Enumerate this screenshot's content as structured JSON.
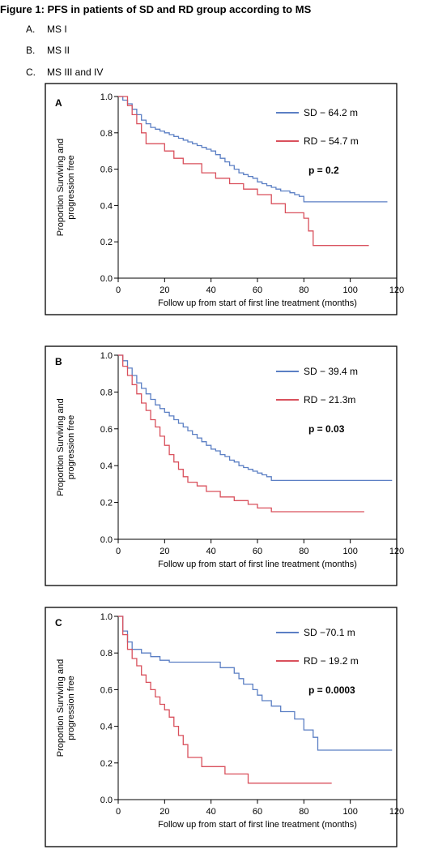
{
  "figure": {
    "title": "Figure 1: PFS in patients of SD and RD group according to MS",
    "captions": [
      {
        "letter": "A.",
        "text": "MS I"
      },
      {
        "letter": "B.",
        "text": "MS II"
      },
      {
        "letter": "C.",
        "text": "MS III and IV"
      }
    ]
  },
  "colors": {
    "SD": "#5b7fc4",
    "RD": "#d9505c"
  },
  "chart_data": [
    {
      "type": "line",
      "step": true,
      "panel_label": "A",
      "xlabel": "Follow up from start of first line treatment (months)",
      "ylabel": "Proportion Surviving and progression free",
      "xlim": [
        0,
        120
      ],
      "ylim": [
        0,
        1.0
      ],
      "xticks": [
        0,
        20,
        40,
        60,
        80,
        100,
        120
      ],
      "yticks": [
        0.0,
        0.2,
        0.4,
        0.6,
        0.8,
        1.0
      ],
      "xtick_labels": [
        "0",
        "20",
        "40",
        "60",
        "80",
        "100",
        "120"
      ],
      "ytick_labels": [
        "0.0",
        "0.2",
        "0.4",
        "0.6",
        "0.8",
        "1.0"
      ],
      "legend_position": "top-right",
      "p_value": "p = 0.2",
      "series": [
        {
          "name": "SD − 64.2 m",
          "color_key": "SD",
          "x": [
            0,
            2,
            4,
            6,
            8,
            10,
            12,
            14,
            16,
            18,
            20,
            22,
            24,
            26,
            28,
            30,
            32,
            34,
            36,
            38,
            40,
            42,
            44,
            46,
            48,
            50,
            52,
            54,
            56,
            58,
            60,
            62,
            64,
            66,
            68,
            70,
            72,
            74,
            76,
            78,
            80,
            116
          ],
          "y": [
            1.0,
            0.98,
            0.96,
            0.93,
            0.9,
            0.87,
            0.85,
            0.83,
            0.82,
            0.81,
            0.8,
            0.79,
            0.78,
            0.77,
            0.76,
            0.75,
            0.74,
            0.73,
            0.72,
            0.71,
            0.7,
            0.68,
            0.66,
            0.64,
            0.62,
            0.6,
            0.58,
            0.57,
            0.56,
            0.55,
            0.53,
            0.52,
            0.51,
            0.5,
            0.49,
            0.48,
            0.48,
            0.47,
            0.46,
            0.45,
            0.42,
            0.42
          ]
        },
        {
          "name": "RD − 54.7 m",
          "color_key": "RD",
          "x": [
            0,
            4,
            6,
            8,
            10,
            12,
            20,
            24,
            28,
            36,
            42,
            48,
            54,
            60,
            66,
            72,
            80,
            82,
            84,
            108
          ],
          "y": [
            1.0,
            0.95,
            0.9,
            0.85,
            0.8,
            0.74,
            0.7,
            0.66,
            0.63,
            0.58,
            0.55,
            0.52,
            0.49,
            0.46,
            0.41,
            0.36,
            0.33,
            0.26,
            0.18,
            0.18
          ]
        }
      ]
    },
    {
      "type": "line",
      "step": true,
      "panel_label": "B",
      "xlabel": "Follow up from start of first line treatment (months)",
      "ylabel": "Proportion Surviving and progression free",
      "xlim": [
        0,
        120
      ],
      "ylim": [
        0,
        1.0
      ],
      "xticks": [
        0,
        20,
        40,
        60,
        80,
        100,
        120
      ],
      "yticks": [
        0.0,
        0.2,
        0.4,
        0.6,
        0.8,
        1.0
      ],
      "xtick_labels": [
        "0",
        "20",
        "40",
        "60",
        "80",
        "100",
        "120"
      ],
      "ytick_labels": [
        "0.0",
        "0.2",
        "0.4",
        "0.6",
        "0.8",
        "1.0"
      ],
      "legend_position": "top-right",
      "p_value": "p = 0.03",
      "series": [
        {
          "name": "SD − 39.4 m",
          "color_key": "SD",
          "x": [
            0,
            2,
            4,
            6,
            8,
            10,
            12,
            14,
            16,
            18,
            20,
            22,
            24,
            26,
            28,
            30,
            32,
            34,
            36,
            38,
            40,
            42,
            44,
            46,
            48,
            50,
            52,
            54,
            56,
            58,
            60,
            62,
            64,
            66,
            118
          ],
          "y": [
            1.0,
            0.97,
            0.93,
            0.89,
            0.85,
            0.82,
            0.79,
            0.76,
            0.73,
            0.71,
            0.69,
            0.67,
            0.65,
            0.63,
            0.61,
            0.59,
            0.57,
            0.55,
            0.53,
            0.51,
            0.49,
            0.48,
            0.46,
            0.45,
            0.43,
            0.42,
            0.4,
            0.39,
            0.38,
            0.37,
            0.36,
            0.35,
            0.34,
            0.32,
            0.32
          ]
        },
        {
          "name": "RD − 21.3m",
          "color_key": "RD",
          "x": [
            0,
            2,
            4,
            6,
            8,
            10,
            12,
            14,
            16,
            18,
            20,
            22,
            24,
            26,
            28,
            30,
            34,
            38,
            44,
            50,
            56,
            60,
            66,
            106
          ],
          "y": [
            1.0,
            0.94,
            0.89,
            0.84,
            0.79,
            0.74,
            0.7,
            0.65,
            0.61,
            0.56,
            0.51,
            0.46,
            0.42,
            0.38,
            0.34,
            0.31,
            0.29,
            0.26,
            0.23,
            0.21,
            0.19,
            0.17,
            0.15,
            0.15
          ]
        }
      ]
    },
    {
      "type": "line",
      "step": true,
      "panel_label": "C",
      "xlabel": "Follow up from start of first line treatment (months)",
      "ylabel": "Proportion Surviving and progression free",
      "xlim": [
        0,
        120
      ],
      "ylim": [
        0,
        1.0
      ],
      "xticks": [
        0,
        20,
        40,
        60,
        80,
        100,
        120
      ],
      "yticks": [
        0.0,
        0.2,
        0.4,
        0.6,
        0.8,
        1.0
      ],
      "xtick_labels": [
        "0",
        "20",
        "40",
        "60",
        "80",
        "100",
        "120"
      ],
      "ytick_labels": [
        "0.0",
        "0.2",
        "0.4",
        "0.6",
        "0.8",
        "1.0"
      ],
      "legend_position": "top-right",
      "p_value": "p = 0.0003",
      "series": [
        {
          "name": "SD −70.1 m",
          "color_key": "SD",
          "x": [
            0,
            2,
            4,
            6,
            10,
            14,
            18,
            22,
            28,
            36,
            44,
            50,
            52,
            54,
            58,
            60,
            62,
            66,
            70,
            76,
            80,
            84,
            86,
            118
          ],
          "y": [
            1.0,
            0.92,
            0.86,
            0.82,
            0.8,
            0.78,
            0.76,
            0.75,
            0.75,
            0.75,
            0.72,
            0.69,
            0.66,
            0.63,
            0.6,
            0.57,
            0.54,
            0.51,
            0.48,
            0.44,
            0.38,
            0.34,
            0.27,
            0.27
          ]
        },
        {
          "name": "RD − 19.2 m",
          "color_key": "RD",
          "x": [
            0,
            2,
            4,
            6,
            8,
            10,
            12,
            14,
            16,
            18,
            20,
            22,
            24,
            26,
            28,
            30,
            36,
            46,
            56,
            92
          ],
          "y": [
            1.0,
            0.9,
            0.82,
            0.77,
            0.73,
            0.68,
            0.64,
            0.6,
            0.56,
            0.52,
            0.49,
            0.45,
            0.4,
            0.35,
            0.3,
            0.23,
            0.18,
            0.14,
            0.09,
            0.09
          ]
        }
      ]
    }
  ]
}
